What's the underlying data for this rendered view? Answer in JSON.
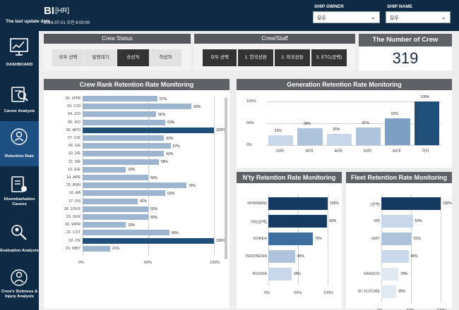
{
  "header": {
    "app_title": "BI",
    "app_subtitle": "[HR]",
    "last_update_label": "The last update date",
    "last_update_value": "2024-07-01 오전 8:00:00"
  },
  "filters": {
    "ship_owner": {
      "label": "SHIP OWNER",
      "value": "모두"
    },
    "ship_name": {
      "label": "SHIP NAME",
      "value": "모두"
    }
  },
  "sidebar": {
    "items": [
      {
        "label": "DASHBOARD",
        "icon": "dashboard-icon"
      },
      {
        "label": "Career Analysis",
        "icon": "career-icon"
      },
      {
        "label": "Retention Rate",
        "icon": "retention-icon"
      },
      {
        "label": "Disembarkation Causes",
        "icon": "disembark-icon"
      },
      {
        "label": "Evaluation Analysis",
        "icon": "evaluation-icon"
      },
      {
        "label": "Crew's Sickness & Injury Analysis",
        "icon": "sickness-icon"
      }
    ],
    "active_index": 2
  },
  "crew_status": {
    "title": "Crew Status",
    "buttons": [
      "모두 선택",
      "발령대기",
      "승선자",
      "하선자"
    ],
    "selected_index": 2
  },
  "crew_staff": {
    "title": "Crew/Staff",
    "buttons": [
      "모두 선택",
      "1. 한국선원",
      "2. 외국선원",
      "3. ETC(공백)"
    ],
    "selected_index": 0
  },
  "crew_count": {
    "title": "The Number of Crew",
    "value": "319"
  },
  "rank_chart": {
    "title": "Crew Rank Retention Rate Monitoring",
    "chart_data": {
      "type": "bar",
      "orientation": "horizontal",
      "categories": [
        "01. MTR",
        "03. C/O",
        "04. 2/O",
        "05. 3/O",
        "06. APO",
        "07. C/E",
        "09. 1/E",
        "10. 2/E",
        "12. 3/E",
        "13. E/E",
        "14. APE",
        "15. BSN",
        "16. AB",
        "17. OS",
        "18. 1OLR",
        "19. OLR",
        "20. WPR",
        "21. CST",
        "22. CK",
        "23. MBY"
      ],
      "values": [
        57,
        83,
        56,
        63,
        100,
        62,
        67,
        62,
        58,
        33,
        50,
        79,
        63,
        42,
        50,
        50,
        33,
        66,
        100,
        21
      ],
      "labels": [
        "57%",
        "83%",
        "56%",
        "63%",
        "100%",
        "62%",
        "67%",
        "62%",
        "58%",
        "33%",
        "50%",
        "79%",
        "63%",
        "42%",
        "50%",
        "50%",
        "33%",
        "66%",
        "100%",
        "21%"
      ],
      "highlight": [
        4,
        18
      ],
      "xticks": [
        "0%",
        "50%",
        "100%"
      ],
      "xlim": [
        0,
        100
      ]
    }
  },
  "generation_chart": {
    "title": "Generation Retention Rate Monitoring",
    "chart_data": {
      "type": "bar",
      "categories": [
        "20대",
        "30대",
        "40대",
        "50대",
        "60대",
        "기타"
      ],
      "values": [
        22,
        39,
        26,
        41,
        62,
        100
      ],
      "labels": [
        "22%",
        "39%",
        "26%",
        "41%",
        "62%",
        "100%"
      ],
      "yticks": [
        "100%",
        "50%",
        "0%"
      ],
      "ylim": [
        0,
        100
      ]
    }
  },
  "nty_chart": {
    "title": "N'ty Retention Rate Monitoring",
    "chart_data": {
      "type": "bar",
      "orientation": "horizontal",
      "categories": [
        "MYANMAR",
        "기타(공백)",
        "KOREA",
        "INDONESIA",
        "RUSSIA"
      ],
      "values": [
        100,
        99,
        75,
        45,
        39
      ],
      "labels": [
        "100%",
        "99%",
        "75%",
        "45%",
        "39%"
      ],
      "xticks": [
        "0%",
        "50%",
        "100%"
      ],
      "xlim": [
        0,
        100
      ]
    }
  },
  "fleet_chart": {
    "title": "Fleet Retention Rate Monitoring",
    "chart_data": {
      "type": "bar",
      "orientation": "horizontal",
      "categories": [
        "(공백)",
        "SW",
        "GMT",
        "",
        "SAMJOO",
        "SC FUTURE"
      ],
      "values": [
        100,
        53,
        51,
        46,
        29,
        25
      ],
      "labels": [
        "100%",
        "53%",
        "51%",
        "46%",
        "29%",
        "25%"
      ],
      "xticks": [
        "0%",
        "50%",
        "100%"
      ],
      "xlim": [
        0,
        100
      ]
    }
  },
  "colors": {
    "navy": "#0f2a44",
    "active_nav": "#1e4f82",
    "panel_header": "#5e6166",
    "bar_light": "#9db5cf",
    "bar_dark": "#1f4e79",
    "seg_selected": "#333333",
    "seg_normal": "#e4e4e4"
  }
}
